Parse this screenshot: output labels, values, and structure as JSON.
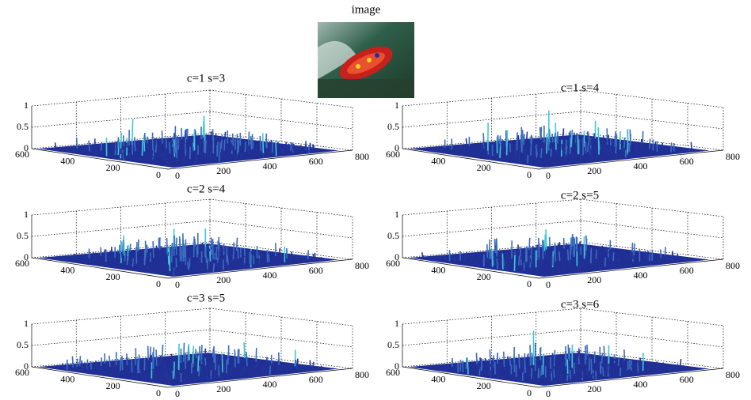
{
  "image_title": "image",
  "panels": [
    {
      "title": "c=1 s=3",
      "z_ticks": [
        "0",
        "0.5",
        "1"
      ],
      "y_ticks": [
        "600",
        "400",
        "200",
        "0"
      ],
      "x_ticks": [
        "0",
        "200",
        "400",
        "600",
        "800"
      ]
    },
    {
      "title": "c=1 s=4",
      "z_ticks": [
        "0",
        "0.5",
        "1"
      ],
      "y_ticks": [
        "600",
        "400",
        "200",
        "0"
      ],
      "x_ticks": [
        "0",
        "200",
        "400",
        "600",
        "800"
      ]
    },
    {
      "title": "c=2 s=4",
      "z_ticks": [
        "0",
        "0.5",
        "1"
      ],
      "y_ticks": [
        "600",
        "400",
        "200",
        "0"
      ],
      "x_ticks": [
        "0",
        "200",
        "400",
        "600",
        "800"
      ]
    },
    {
      "title": "c=2 s=5",
      "z_ticks": [
        "0",
        "0.5",
        "1"
      ],
      "y_ticks": [
        "600",
        "400",
        "200",
        "0"
      ],
      "x_ticks": [
        "0",
        "200",
        "400",
        "600",
        "800"
      ]
    },
    {
      "title": "c=3 s=5",
      "z_ticks": [
        "0",
        "0.5",
        "1"
      ],
      "y_ticks": [
        "600",
        "400",
        "200",
        "0"
      ],
      "x_ticks": [
        "0",
        "200",
        "400",
        "600",
        "800"
      ]
    },
    {
      "title": "c=3 s=6",
      "z_ticks": [
        "0",
        "0.5",
        "1"
      ],
      "y_ticks": [
        "600",
        "400",
        "200",
        "0"
      ],
      "x_ticks": [
        "0",
        "200",
        "400",
        "600",
        "800"
      ]
    }
  ]
}
